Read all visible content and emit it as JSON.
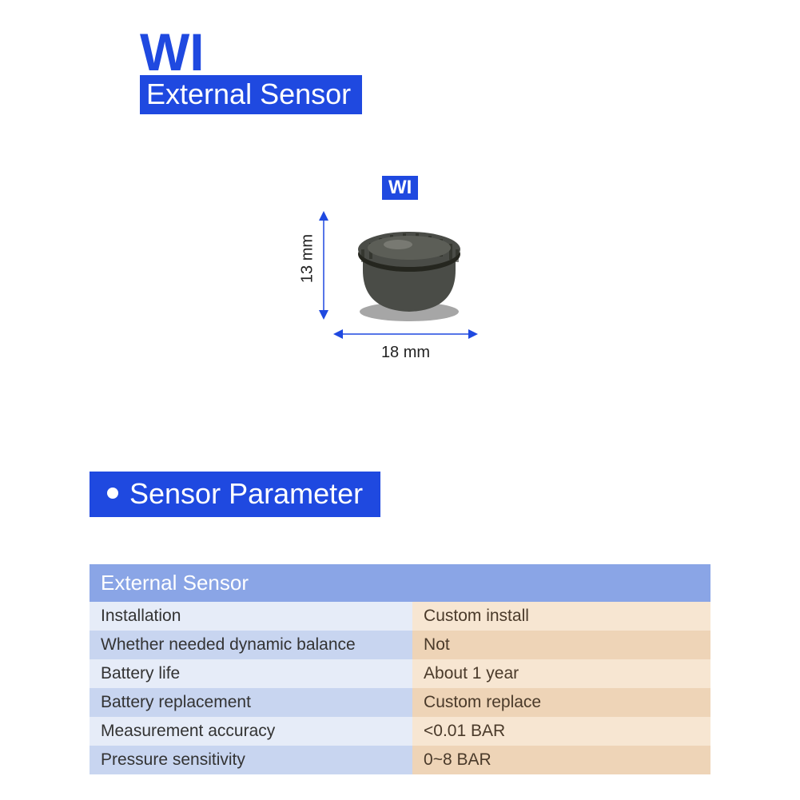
{
  "colors": {
    "brand_blue": "#1f49e0",
    "brand_blue_text": "#1f49e0",
    "table_header_bg": "#8aa5e6",
    "row_left_a": "#e6ecf8",
    "row_left_b": "#c8d5f0",
    "row_right_a": "#f7e6d2",
    "row_right_b": "#eed4b7",
    "arrow": "#1f49e0"
  },
  "header": {
    "model": "WI",
    "subtitle": "External Sensor"
  },
  "diagram": {
    "badge": "WI",
    "height_label": "13 mm",
    "width_label": "18 mm",
    "sensor_body_color": "#4a4c47",
    "sensor_shadow": "#25261f"
  },
  "section": {
    "title": "Sensor Parameter"
  },
  "table": {
    "title": "External Sensor",
    "col_widths": [
      "52%",
      "48%"
    ],
    "rows": [
      {
        "k": "Installation",
        "v": "Custom install"
      },
      {
        "k": "Whether needed dynamic balance",
        "v": "Not"
      },
      {
        "k": "Battery life",
        "v": "About 1 year"
      },
      {
        "k": "Battery replacement",
        "v": "Custom replace"
      },
      {
        "k": "Measurement accuracy",
        "v": "<0.01 BAR"
      },
      {
        "k": "Pressure sensitivity",
        "v": "0~8 BAR"
      }
    ]
  }
}
